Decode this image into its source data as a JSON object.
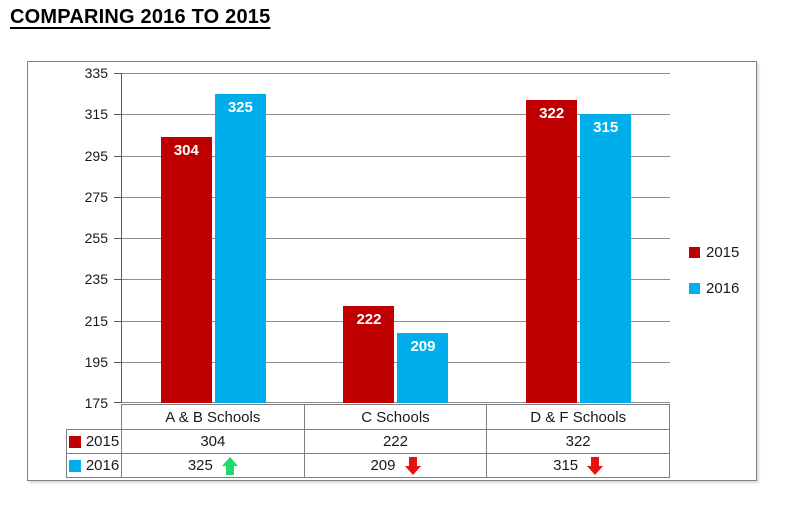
{
  "title": "COMPARING 2016 TO 2015",
  "colors": {
    "series_2015": "#C00000",
    "series_2016": "#00AEEC",
    "up_arrow": "#22D96E",
    "down_arrow": "#E81111",
    "grid": "#8C8C8C",
    "axis": "#595959",
    "border": "#808080"
  },
  "chart_data": {
    "type": "bar",
    "categories": [
      "A & B Schools",
      "C Schools",
      "D & F Schools"
    ],
    "series": [
      {
        "name": "2015",
        "color": "#C00000",
        "values": [
          304,
          222,
          322
        ]
      },
      {
        "name": "2016",
        "color": "#00AEEC",
        "values": [
          325,
          209,
          315
        ]
      }
    ],
    "title": "COMPARING 2016 TO 2015",
    "xlabel": "",
    "ylabel": "",
    "ylim": [
      175,
      335
    ],
    "yticks": [
      335,
      315,
      295,
      275,
      255,
      235,
      215,
      195,
      175
    ],
    "grid": true,
    "legend_position": "right",
    "bar_value_labels": true
  },
  "legend": {
    "items": [
      {
        "label": "2015",
        "color": "#C00000"
      },
      {
        "label": "2016",
        "color": "#00AEEC"
      }
    ]
  },
  "table": {
    "header": [
      "A & B Schools",
      "C Schools",
      "D & F Schools"
    ],
    "rows": [
      {
        "label": "2015",
        "swatch": "#C00000",
        "cells": [
          {
            "value": "304",
            "arrow": null
          },
          {
            "value": "222",
            "arrow": null
          },
          {
            "value": "322",
            "arrow": null
          }
        ]
      },
      {
        "label": "2016",
        "swatch": "#00AEEC",
        "cells": [
          {
            "value": "325",
            "arrow": "up"
          },
          {
            "value": "209",
            "arrow": "down"
          },
          {
            "value": "315",
            "arrow": "down"
          }
        ]
      }
    ]
  }
}
